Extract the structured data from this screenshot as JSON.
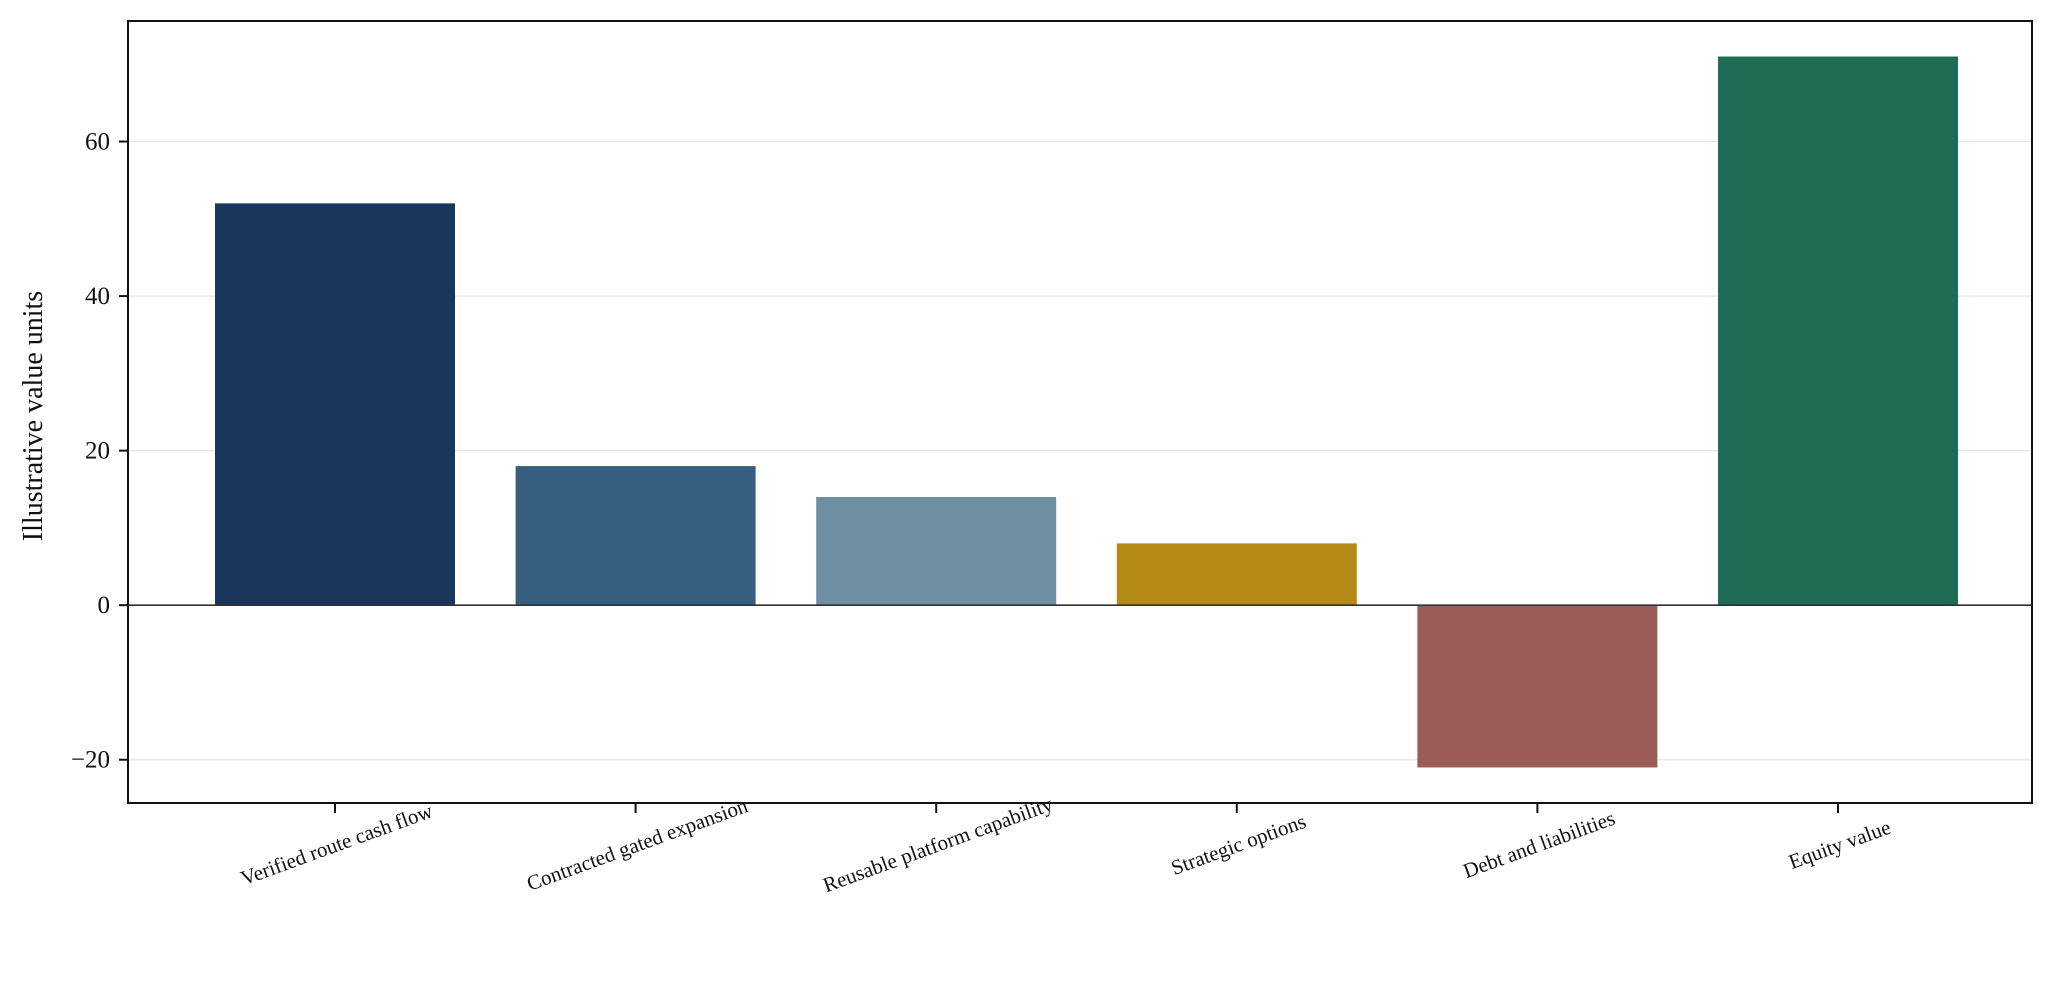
{
  "chart_data": {
    "type": "bar",
    "title": "",
    "xlabel": "",
    "ylabel": "Illustrative value units",
    "categories": [
      "Verified route cash flow",
      "Contracted gated expansion",
      "Reusable platform capability",
      "Strategic options",
      "Debt and liabilities",
      "Equity value"
    ],
    "values": [
      52,
      18,
      14,
      8,
      -21,
      71
    ],
    "colors": [
      "#1b365d",
      "#365e7e",
      "#6d8fa1",
      "#b58916",
      "#9a5c56",
      "#1f6b55"
    ],
    "ylim": [
      -25.6,
      75.6
    ],
    "yticks": [
      -20,
      0,
      20,
      40,
      60
    ],
    "ytick_labels": [
      "−20",
      "0",
      "20",
      "40",
      "60"
    ],
    "grid": true,
    "zero_line": true,
    "legend": "none"
  }
}
